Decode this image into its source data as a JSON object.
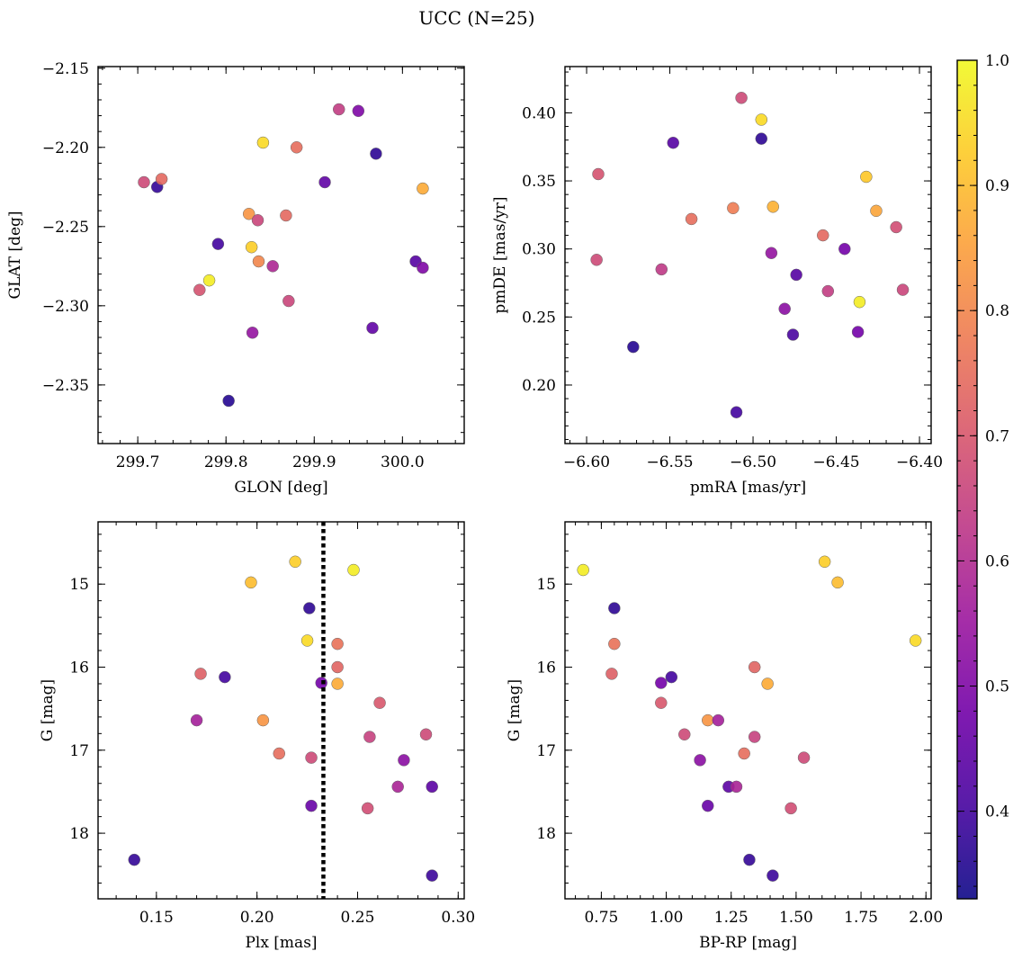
{
  "figure_title": "UCC (N=25)",
  "colormap": {
    "name": "plasma",
    "stops": [
      "#0d0887",
      "#46039f",
      "#7201a8",
      "#9c179e",
      "#bd3786",
      "#d8576b",
      "#ed7953",
      "#fb9f3a",
      "#fdca26",
      "#f0f921"
    ],
    "range": [
      0.33,
      1.0
    ],
    "ticks": [
      0.4,
      0.5,
      0.6,
      0.7,
      0.8,
      0.9,
      1.0
    ],
    "tick_labels": [
      "0.4",
      "0.5",
      "0.6",
      "0.7",
      "0.8",
      "0.9",
      "1.0"
    ]
  },
  "chart_data": [
    {
      "type": "scatter",
      "name": "glon-glat",
      "xlabel": "GLON [deg]",
      "ylabel": "GLAT [deg]",
      "xlim": [
        299.655,
        300.07
      ],
      "ylim": [
        -2.387,
        -2.149
      ],
      "invert_y": false,
      "xticks": [
        299.7,
        299.8,
        299.9,
        300.0
      ],
      "xtick_labels": [
        "299.7",
        "299.8",
        "299.9",
        "300.0"
      ],
      "xminor": 0.02,
      "yticks": [
        -2.35,
        -2.3,
        -2.25,
        -2.2,
        -2.15
      ],
      "ytick_labels": [
        "−2.35",
        "−2.30",
        "−2.25",
        "−2.20",
        "−2.15"
      ],
      "yminor": 0.01,
      "points": [
        {
          "x": 299.707,
          "y": -2.222,
          "c": 0.67
        },
        {
          "x": 299.722,
          "y": -2.225,
          "c": 0.38
        },
        {
          "x": 299.727,
          "y": -2.22,
          "c": 0.74
        },
        {
          "x": 299.77,
          "y": -2.29,
          "c": 0.69
        },
        {
          "x": 299.781,
          "y": -2.284,
          "c": 0.98
        },
        {
          "x": 299.791,
          "y": -2.261,
          "c": 0.4
        },
        {
          "x": 299.803,
          "y": -2.36,
          "c": 0.36
        },
        {
          "x": 299.826,
          "y": -2.242,
          "c": 0.83
        },
        {
          "x": 299.829,
          "y": -2.263,
          "c": 0.93
        },
        {
          "x": 299.83,
          "y": -2.317,
          "c": 0.54
        },
        {
          "x": 299.836,
          "y": -2.246,
          "c": 0.66
        },
        {
          "x": 299.837,
          "y": -2.272,
          "c": 0.8
        },
        {
          "x": 299.842,
          "y": -2.197,
          "c": 0.95
        },
        {
          "x": 299.853,
          "y": -2.275,
          "c": 0.59
        },
        {
          "x": 299.868,
          "y": -2.243,
          "c": 0.74
        },
        {
          "x": 299.871,
          "y": -2.297,
          "c": 0.66
        },
        {
          "x": 299.88,
          "y": -2.2,
          "c": 0.75
        },
        {
          "x": 299.912,
          "y": -2.222,
          "c": 0.45
        },
        {
          "x": 299.928,
          "y": -2.176,
          "c": 0.64
        },
        {
          "x": 299.95,
          "y": -2.177,
          "c": 0.5
        },
        {
          "x": 299.966,
          "y": -2.314,
          "c": 0.45
        },
        {
          "x": 299.97,
          "y": -2.204,
          "c": 0.37
        },
        {
          "x": 300.015,
          "y": -2.272,
          "c": 0.43
        },
        {
          "x": 300.023,
          "y": -2.276,
          "c": 0.5
        },
        {
          "x": 300.023,
          "y": -2.226,
          "c": 0.87
        }
      ]
    },
    {
      "type": "scatter",
      "name": "pmra-pmde",
      "xlabel": "pmRA [mas/yr]",
      "ylabel": "pmDE [mas/yr]",
      "xlim": [
        -6.613,
        -6.393
      ],
      "ylim": [
        0.157,
        0.434
      ],
      "invert_y": false,
      "xticks": [
        -6.6,
        -6.55,
        -6.5,
        -6.45,
        -6.4
      ],
      "xtick_labels": [
        "−6.60",
        "−6.55",
        "−6.50",
        "−6.45",
        "−6.40"
      ],
      "xminor": 0.01,
      "yticks": [
        0.2,
        0.25,
        0.3,
        0.35,
        0.4
      ],
      "ytick_labels": [
        "0.20",
        "0.25",
        "0.30",
        "0.35",
        "0.40"
      ],
      "yminor": 0.01,
      "points": [
        {
          "x": -6.593,
          "y": 0.355,
          "c": 0.69
        },
        {
          "x": -6.594,
          "y": 0.292,
          "c": 0.67
        },
        {
          "x": -6.572,
          "y": 0.228,
          "c": 0.36
        },
        {
          "x": -6.548,
          "y": 0.378,
          "c": 0.43
        },
        {
          "x": -6.555,
          "y": 0.285,
          "c": 0.63
        },
        {
          "x": -6.537,
          "y": 0.322,
          "c": 0.75
        },
        {
          "x": -6.512,
          "y": 0.33,
          "c": 0.78
        },
        {
          "x": -6.51,
          "y": 0.18,
          "c": 0.4
        },
        {
          "x": -6.507,
          "y": 0.411,
          "c": 0.67
        },
        {
          "x": -6.495,
          "y": 0.395,
          "c": 0.95
        },
        {
          "x": -6.495,
          "y": 0.381,
          "c": 0.37
        },
        {
          "x": -6.488,
          "y": 0.331,
          "c": 0.88
        },
        {
          "x": -6.489,
          "y": 0.297,
          "c": 0.54
        },
        {
          "x": -6.481,
          "y": 0.256,
          "c": 0.52
        },
        {
          "x": -6.476,
          "y": 0.237,
          "c": 0.41
        },
        {
          "x": -6.474,
          "y": 0.281,
          "c": 0.43
        },
        {
          "x": -6.458,
          "y": 0.31,
          "c": 0.74
        },
        {
          "x": -6.455,
          "y": 0.269,
          "c": 0.64
        },
        {
          "x": -6.445,
          "y": 0.3,
          "c": 0.48
        },
        {
          "x": -6.436,
          "y": 0.261,
          "c": 0.98
        },
        {
          "x": -6.437,
          "y": 0.239,
          "c": 0.48
        },
        {
          "x": -6.432,
          "y": 0.353,
          "c": 0.92
        },
        {
          "x": -6.426,
          "y": 0.328,
          "c": 0.86
        },
        {
          "x": -6.414,
          "y": 0.316,
          "c": 0.68
        },
        {
          "x": -6.41,
          "y": 0.27,
          "c": 0.66
        }
      ]
    },
    {
      "type": "scatter",
      "name": "plx-g",
      "xlabel": "Plx [mas]",
      "ylabel": "G [mag]",
      "xlim": [
        0.121,
        0.303
      ],
      "ylim": [
        14.25,
        18.79
      ],
      "invert_y": true,
      "xticks": [
        0.15,
        0.2,
        0.25,
        0.3
      ],
      "xtick_labels": [
        "0.15",
        "0.20",
        "0.25",
        "0.30"
      ],
      "xminor": 0.01,
      "yticks": [
        15,
        16,
        17,
        18
      ],
      "ytick_labels": [
        "15",
        "16",
        "17",
        "18"
      ],
      "yminor": 0.2,
      "vline": 0.233,
      "points": [
        {
          "x": 0.139,
          "y": 18.32,
          "c": 0.38
        },
        {
          "x": 0.17,
          "y": 16.64,
          "c": 0.57
        },
        {
          "x": 0.172,
          "y": 16.08,
          "c": 0.72
        },
        {
          "x": 0.184,
          "y": 16.12,
          "c": 0.4
        },
        {
          "x": 0.197,
          "y": 14.98,
          "c": 0.9
        },
        {
          "x": 0.203,
          "y": 16.64,
          "c": 0.83
        },
        {
          "x": 0.211,
          "y": 17.04,
          "c": 0.75
        },
        {
          "x": 0.219,
          "y": 14.73,
          "c": 0.93
        },
        {
          "x": 0.225,
          "y": 15.68,
          "c": 0.95
        },
        {
          "x": 0.226,
          "y": 15.29,
          "c": 0.37
        },
        {
          "x": 0.227,
          "y": 17.09,
          "c": 0.67
        },
        {
          "x": 0.227,
          "y": 17.67,
          "c": 0.46
        },
        {
          "x": 0.232,
          "y": 16.19,
          "c": 0.48
        },
        {
          "x": 0.24,
          "y": 15.72,
          "c": 0.76
        },
        {
          "x": 0.24,
          "y": 16.0,
          "c": 0.73
        },
        {
          "x": 0.24,
          "y": 16.2,
          "c": 0.87
        },
        {
          "x": 0.248,
          "y": 14.83,
          "c": 0.98
        },
        {
          "x": 0.255,
          "y": 17.7,
          "c": 0.68
        },
        {
          "x": 0.256,
          "y": 16.84,
          "c": 0.65
        },
        {
          "x": 0.261,
          "y": 16.43,
          "c": 0.7
        },
        {
          "x": 0.27,
          "y": 17.44,
          "c": 0.58
        },
        {
          "x": 0.273,
          "y": 17.12,
          "c": 0.52
        },
        {
          "x": 0.284,
          "y": 16.81,
          "c": 0.67
        },
        {
          "x": 0.287,
          "y": 17.44,
          "c": 0.44
        },
        {
          "x": 0.287,
          "y": 18.51,
          "c": 0.39
        }
      ]
    },
    {
      "type": "scatter",
      "name": "bprp-g",
      "xlabel": "BP-RP [mag]",
      "ylabel": "G [mag]",
      "xlim": [
        0.61,
        2.02
      ],
      "ylim": [
        14.25,
        18.79
      ],
      "invert_y": true,
      "xticks": [
        0.75,
        1.0,
        1.25,
        1.5,
        1.75,
        2.0
      ],
      "xtick_labels": [
        "0.75",
        "1.00",
        "1.25",
        "1.50",
        "1.75",
        "2.00"
      ],
      "xminor": 0.05,
      "yticks": [
        15,
        16,
        17,
        18
      ],
      "ytick_labels": [
        "15",
        "16",
        "17",
        "18"
      ],
      "yminor": 0.2,
      "points": [
        {
          "x": 0.68,
          "y": 14.83,
          "c": 0.98
        },
        {
          "x": 0.79,
          "y": 16.08,
          "c": 0.72
        },
        {
          "x": 0.8,
          "y": 15.29,
          "c": 0.37
        },
        {
          "x": 0.8,
          "y": 15.72,
          "c": 0.76
        },
        {
          "x": 0.98,
          "y": 16.19,
          "c": 0.48
        },
        {
          "x": 0.98,
          "y": 16.43,
          "c": 0.7
        },
        {
          "x": 1.02,
          "y": 16.12,
          "c": 0.4
        },
        {
          "x": 1.07,
          "y": 16.81,
          "c": 0.67
        },
        {
          "x": 1.13,
          "y": 17.12,
          "c": 0.52
        },
        {
          "x": 1.16,
          "y": 16.64,
          "c": 0.83
        },
        {
          "x": 1.16,
          "y": 17.67,
          "c": 0.46
        },
        {
          "x": 1.2,
          "y": 16.64,
          "c": 0.57
        },
        {
          "x": 1.24,
          "y": 17.44,
          "c": 0.44
        },
        {
          "x": 1.27,
          "y": 17.44,
          "c": 0.58
        },
        {
          "x": 1.3,
          "y": 17.04,
          "c": 0.75
        },
        {
          "x": 1.32,
          "y": 18.32,
          "c": 0.38
        },
        {
          "x": 1.34,
          "y": 16.0,
          "c": 0.73
        },
        {
          "x": 1.34,
          "y": 16.84,
          "c": 0.65
        },
        {
          "x": 1.39,
          "y": 16.2,
          "c": 0.87
        },
        {
          "x": 1.41,
          "y": 18.51,
          "c": 0.39
        },
        {
          "x": 1.48,
          "y": 17.7,
          "c": 0.68
        },
        {
          "x": 1.53,
          "y": 17.09,
          "c": 0.67
        },
        {
          "x": 1.61,
          "y": 14.73,
          "c": 0.93
        },
        {
          "x": 1.66,
          "y": 14.98,
          "c": 0.9
        },
        {
          "x": 1.96,
          "y": 15.68,
          "c": 0.95
        }
      ]
    }
  ]
}
